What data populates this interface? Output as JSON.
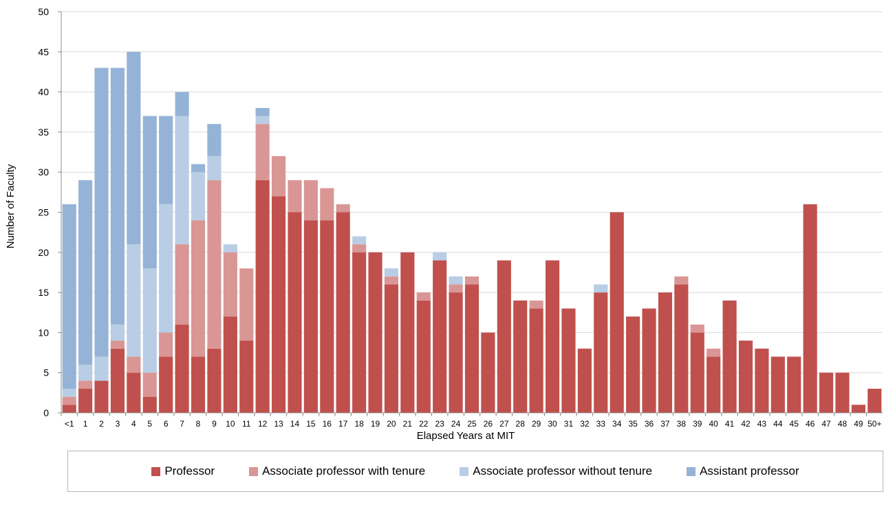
{
  "chart_data": {
    "type": "bar",
    "stacked": true,
    "title": "",
    "xlabel": "Elapsed Years at MIT",
    "ylabel": "Number of Faculty",
    "ylim": [
      0,
      50
    ],
    "yticks": [
      0,
      5,
      10,
      15,
      20,
      25,
      30,
      35,
      40,
      45,
      50
    ],
    "grid": "horizontal",
    "legend_position": "bottom",
    "categories": [
      "<1",
      "1",
      "2",
      "3",
      "4",
      "5",
      "6",
      "7",
      "8",
      "9",
      "10",
      "11",
      "12",
      "13",
      "14",
      "15",
      "16",
      "17",
      "18",
      "19",
      "20",
      "21",
      "22",
      "23",
      "24",
      "25",
      "26",
      "27",
      "28",
      "29",
      "30",
      "31",
      "32",
      "33",
      "34",
      "35",
      "36",
      "37",
      "38",
      "39",
      "40",
      "41",
      "42",
      "43",
      "44",
      "45",
      "46",
      "47",
      "48",
      "49",
      "50+"
    ],
    "series": [
      {
        "name": "Professor",
        "color": "#c0504d",
        "values": [
          1,
          3,
          4,
          8,
          5,
          2,
          7,
          11,
          7,
          8,
          12,
          9,
          29,
          27,
          25,
          24,
          24,
          25,
          20,
          20,
          16,
          20,
          14,
          19,
          15,
          16,
          10,
          19,
          14,
          13,
          19,
          13,
          8,
          15,
          25,
          12,
          13,
          15,
          16,
          10,
          7,
          14,
          9,
          8,
          7,
          7,
          26,
          5,
          5,
          1,
          3
        ]
      },
      {
        "name": "Associate professor with tenure",
        "color": "#d99694",
        "values": [
          1,
          1,
          0,
          1,
          2,
          3,
          3,
          10,
          17,
          21,
          8,
          9,
          7,
          5,
          4,
          5,
          4,
          1,
          1,
          0,
          1,
          0,
          1,
          0,
          1,
          1,
          0,
          0,
          0,
          1,
          0,
          0,
          0,
          0,
          0,
          0,
          0,
          0,
          1,
          1,
          1,
          0,
          0,
          0,
          0,
          0,
          0,
          0,
          0,
          0,
          0
        ]
      },
      {
        "name": "Associate professor without tenure",
        "color": "#b9cde5",
        "values": [
          1,
          2,
          3,
          2,
          14,
          13,
          16,
          16,
          6,
          3,
          1,
          0,
          1,
          0,
          0,
          0,
          0,
          0,
          1,
          0,
          1,
          0,
          0,
          1,
          1,
          0,
          0,
          0,
          0,
          0,
          0,
          0,
          0,
          1,
          0,
          0,
          0,
          0,
          0,
          0,
          0,
          0,
          0,
          0,
          0,
          0,
          0,
          0,
          0,
          0,
          0
        ]
      },
      {
        "name": "Assistant professor",
        "color": "#95b3d7",
        "values": [
          23,
          23,
          36,
          32,
          24,
          19,
          11,
          3,
          1,
          4,
          0,
          0,
          1,
          0,
          0,
          0,
          0,
          0,
          0,
          0,
          0,
          0,
          0,
          0,
          0,
          0,
          0,
          0,
          0,
          0,
          0,
          0,
          0,
          0,
          0,
          0,
          0,
          0,
          0,
          0,
          0,
          0,
          0,
          0,
          0,
          0,
          0,
          0,
          0,
          0,
          0
        ]
      }
    ]
  }
}
